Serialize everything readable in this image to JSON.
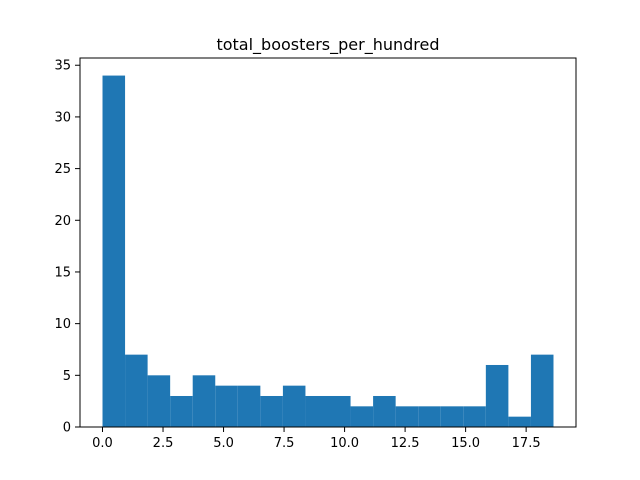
{
  "chart_data": {
    "type": "bar",
    "title": "total_boosters_per_hundred",
    "xlabel": "",
    "ylabel": "",
    "bins": {
      "start": 0.0,
      "end": 18.63,
      "count": 20
    },
    "values": [
      34,
      7,
      5,
      3,
      5,
      4,
      4,
      3,
      4,
      3,
      3,
      2,
      3,
      2,
      2,
      2,
      2,
      6,
      1,
      7
    ],
    "xlim": [
      -0.93,
      19.56
    ],
    "ylim": [
      0,
      35.7
    ],
    "xticks": [
      0.0,
      2.5,
      5.0,
      7.5,
      10.0,
      12.5,
      15.0,
      17.5
    ],
    "xtick_labels": [
      "0.0",
      "2.5",
      "5.0",
      "7.5",
      "10.0",
      "12.5",
      "15.0",
      "17.5"
    ],
    "yticks": [
      0,
      5,
      10,
      15,
      20,
      25,
      30,
      35
    ],
    "ytick_labels": [
      "0",
      "5",
      "10",
      "15",
      "20",
      "25",
      "30",
      "35"
    ],
    "bar_color": "#1f77b4",
    "grid": false,
    "legend": "none"
  }
}
